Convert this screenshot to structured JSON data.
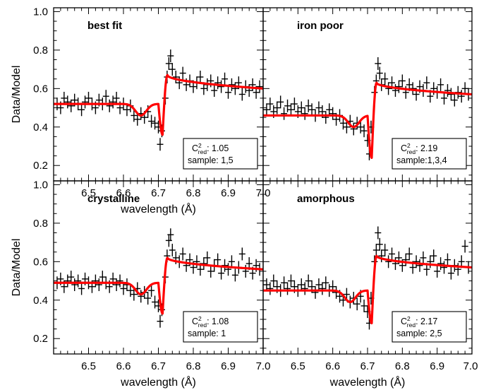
{
  "chart_data": [
    {
      "type": "scatter",
      "title": "best fit",
      "xlabel": "wavelength (Å)",
      "ylabel": "Data/Model",
      "xlim": [
        6.4,
        7.0
      ],
      "ylim": [
        0.12,
        1.02
      ],
      "xticks": [
        "6.5",
        "6.6",
        "6.7",
        "6.8",
        "6.9",
        "7.0"
      ],
      "yticks": [
        "1.0",
        "0.8",
        "0.6",
        "0.4",
        "0.2"
      ],
      "stats": {
        "chi_symbol": "C",
        "chi_sup": "2",
        "chi_sub": "red",
        "chi_value": ": 1.05",
        "sample_text": "sample: 1,5"
      },
      "model": {
        "name": "model",
        "color": "#ff0000",
        "before": 0.52,
        "bump_center": 6.65,
        "bump_depth": 0.06,
        "dip_min": 0.36,
        "peak": 0.67,
        "after": 0.6
      },
      "data": [
        [
          6.41,
          0.52
        ],
        [
          6.42,
          0.5
        ],
        [
          6.43,
          0.55
        ],
        [
          6.44,
          0.53
        ],
        [
          6.45,
          0.51
        ],
        [
          6.46,
          0.54
        ],
        [
          6.47,
          0.52
        ],
        [
          6.48,
          0.49
        ],
        [
          6.49,
          0.53
        ],
        [
          6.5,
          0.55
        ],
        [
          6.51,
          0.52
        ],
        [
          6.52,
          0.5
        ],
        [
          6.53,
          0.54
        ],
        [
          6.54,
          0.52
        ],
        [
          6.55,
          0.56
        ],
        [
          6.56,
          0.51
        ],
        [
          6.57,
          0.53
        ],
        [
          6.58,
          0.55
        ],
        [
          6.59,
          0.5
        ],
        [
          6.6,
          0.52
        ],
        [
          6.61,
          0.49
        ],
        [
          6.62,
          0.51
        ],
        [
          6.63,
          0.46
        ],
        [
          6.64,
          0.44
        ],
        [
          6.65,
          0.47
        ],
        [
          6.66,
          0.45
        ],
        [
          6.67,
          0.48
        ],
        [
          6.68,
          0.43
        ],
        [
          6.69,
          0.42
        ],
        [
          6.7,
          0.4
        ],
        [
          6.705,
          0.31
        ],
        [
          6.71,
          0.38
        ],
        [
          6.72,
          0.55
        ],
        [
          6.725,
          0.66
        ],
        [
          6.73,
          0.73
        ],
        [
          6.735,
          0.77
        ],
        [
          6.74,
          0.7
        ],
        [
          6.75,
          0.66
        ],
        [
          6.76,
          0.63
        ],
        [
          6.77,
          0.68
        ],
        [
          6.78,
          0.62
        ],
        [
          6.79,
          0.64
        ],
        [
          6.8,
          0.61
        ],
        [
          6.81,
          0.63
        ],
        [
          6.82,
          0.66
        ],
        [
          6.83,
          0.6
        ],
        [
          6.84,
          0.62
        ],
        [
          6.85,
          0.64
        ],
        [
          6.86,
          0.59
        ],
        [
          6.87,
          0.63
        ],
        [
          6.88,
          0.61
        ],
        [
          6.89,
          0.65
        ],
        [
          6.9,
          0.58
        ],
        [
          6.91,
          0.62
        ],
        [
          6.92,
          0.6
        ],
        [
          6.93,
          0.63
        ],
        [
          6.94,
          0.57
        ],
        [
          6.95,
          0.61
        ],
        [
          6.96,
          0.59
        ],
        [
          6.97,
          0.62
        ],
        [
          6.98,
          0.58
        ],
        [
          6.99,
          0.61
        ]
      ]
    },
    {
      "type": "scatter",
      "title": "iron poor",
      "xlabel": "",
      "ylabel": "",
      "xlim": [
        6.4,
        7.0
      ],
      "ylim": [
        0.12,
        1.02
      ],
      "stats": {
        "chi_symbol": "C",
        "chi_sup": "2",
        "chi_sub": "red",
        "chi_value": ": 2.19",
        "sample_text": "sample:1,3,4"
      },
      "model": {
        "name": "model",
        "color": "#ff0000",
        "before": 0.46,
        "bump_center": 6.66,
        "bump_depth": 0.06,
        "dip_min": 0.24,
        "peak": 0.63,
        "after": 0.57
      },
      "data": [
        [
          6.41,
          0.49
        ],
        [
          6.42,
          0.52
        ],
        [
          6.43,
          0.48
        ],
        [
          6.44,
          0.5
        ],
        [
          6.45,
          0.53
        ],
        [
          6.46,
          0.47
        ],
        [
          6.47,
          0.51
        ],
        [
          6.48,
          0.49
        ],
        [
          6.49,
          0.52
        ],
        [
          6.5,
          0.48
        ],
        [
          6.51,
          0.5
        ],
        [
          6.52,
          0.47
        ],
        [
          6.53,
          0.51
        ],
        [
          6.54,
          0.49
        ],
        [
          6.55,
          0.46
        ],
        [
          6.56,
          0.5
        ],
        [
          6.57,
          0.48
        ],
        [
          6.58,
          0.45
        ],
        [
          6.59,
          0.49
        ],
        [
          6.6,
          0.47
        ],
        [
          6.61,
          0.44
        ],
        [
          6.62,
          0.46
        ],
        [
          6.63,
          0.42
        ],
        [
          6.64,
          0.4
        ],
        [
          6.65,
          0.43
        ],
        [
          6.66,
          0.39
        ],
        [
          6.67,
          0.42
        ],
        [
          6.68,
          0.4
        ],
        [
          6.69,
          0.38
        ],
        [
          6.7,
          0.33
        ],
        [
          6.705,
          0.26
        ],
        [
          6.71,
          0.4
        ],
        [
          6.72,
          0.58
        ],
        [
          6.725,
          0.64
        ],
        [
          6.73,
          0.73
        ],
        [
          6.735,
          0.68
        ],
        [
          6.74,
          0.62
        ],
        [
          6.75,
          0.65
        ],
        [
          6.76,
          0.6
        ],
        [
          6.77,
          0.63
        ],
        [
          6.78,
          0.59
        ],
        [
          6.79,
          0.61
        ],
        [
          6.8,
          0.64
        ],
        [
          6.81,
          0.58
        ],
        [
          6.82,
          0.62
        ],
        [
          6.83,
          0.6
        ],
        [
          6.84,
          0.57
        ],
        [
          6.85,
          0.61
        ],
        [
          6.86,
          0.59
        ],
        [
          6.87,
          0.63
        ],
        [
          6.88,
          0.56
        ],
        [
          6.89,
          0.6
        ],
        [
          6.9,
          0.58
        ],
        [
          6.91,
          0.62
        ],
        [
          6.92,
          0.55
        ],
        [
          6.93,
          0.59
        ],
        [
          6.94,
          0.57
        ],
        [
          6.95,
          0.54
        ],
        [
          6.96,
          0.58
        ],
        [
          6.97,
          0.56
        ],
        [
          6.98,
          0.6
        ],
        [
          6.99,
          0.57
        ]
      ]
    },
    {
      "type": "scatter",
      "title": "crystalline",
      "xlabel": "wavelength (Å)",
      "ylabel": "Data/Model",
      "xlim": [
        6.4,
        7.0
      ],
      "ylim": [
        0.12,
        1.02
      ],
      "xticks": [
        "6.5",
        "6.6",
        "6.7",
        "6.8",
        "6.9",
        "7.0"
      ],
      "yticks": [
        "1.0",
        "0.8",
        "0.6",
        "0.4",
        "0.2"
      ],
      "stats": {
        "chi_symbol": "C",
        "chi_sup": "2",
        "chi_sub": "red",
        "chi_value": ": 1.08",
        "sample_text": "sample: 1"
      },
      "model": {
        "name": "model",
        "color": "#ff0000",
        "before": 0.49,
        "bump_center": 6.65,
        "bump_depth": 0.06,
        "dip_min": 0.33,
        "peak": 0.62,
        "after": 0.56
      },
      "data": [
        [
          6.41,
          0.49
        ],
        [
          6.42,
          0.51
        ],
        [
          6.43,
          0.47
        ],
        [
          6.44,
          0.5
        ],
        [
          6.45,
          0.52
        ],
        [
          6.46,
          0.48
        ],
        [
          6.47,
          0.5
        ],
        [
          6.48,
          0.46
        ],
        [
          6.49,
          0.51
        ],
        [
          6.5,
          0.49
        ],
        [
          6.51,
          0.47
        ],
        [
          6.52,
          0.5
        ],
        [
          6.53,
          0.48
        ],
        [
          6.54,
          0.52
        ],
        [
          6.55,
          0.49
        ],
        [
          6.56,
          0.47
        ],
        [
          6.57,
          0.51
        ],
        [
          6.58,
          0.48
        ],
        [
          6.59,
          0.5
        ],
        [
          6.6,
          0.46
        ],
        [
          6.61,
          0.48
        ],
        [
          6.62,
          0.45
        ],
        [
          6.63,
          0.43
        ],
        [
          6.64,
          0.46
        ],
        [
          6.65,
          0.42
        ],
        [
          6.66,
          0.44
        ],
        [
          6.67,
          0.41
        ],
        [
          6.68,
          0.45
        ],
        [
          6.69,
          0.39
        ],
        [
          6.7,
          0.37
        ],
        [
          6.705,
          0.29
        ],
        [
          6.71,
          0.35
        ],
        [
          6.72,
          0.52
        ],
        [
          6.725,
          0.63
        ],
        [
          6.73,
          0.71
        ],
        [
          6.735,
          0.74
        ],
        [
          6.74,
          0.66
        ],
        [
          6.75,
          0.62
        ],
        [
          6.76,
          0.6
        ],
        [
          6.77,
          0.64
        ],
        [
          6.78,
          0.58
        ],
        [
          6.79,
          0.61
        ],
        [
          6.8,
          0.57
        ],
        [
          6.81,
          0.6
        ],
        [
          6.82,
          0.56
        ],
        [
          6.83,
          0.59
        ],
        [
          6.84,
          0.62
        ],
        [
          6.85,
          0.55
        ],
        [
          6.86,
          0.58
        ],
        [
          6.87,
          0.61
        ],
        [
          6.88,
          0.54
        ],
        [
          6.89,
          0.58
        ],
        [
          6.9,
          0.56
        ],
        [
          6.91,
          0.6
        ],
        [
          6.92,
          0.53
        ],
        [
          6.93,
          0.57
        ],
        [
          6.94,
          0.64
        ],
        [
          6.95,
          0.55
        ],
        [
          6.96,
          0.59
        ],
        [
          6.97,
          0.54
        ],
        [
          6.98,
          0.58
        ],
        [
          6.99,
          0.56
        ]
      ]
    },
    {
      "type": "scatter",
      "title": "amorphous",
      "xlabel": "wavelength (Å)",
      "ylabel": "",
      "xlim": [
        6.4,
        7.0
      ],
      "ylim": [
        0.12,
        1.02
      ],
      "xticks": [
        "6.5",
        "6.6",
        "6.7",
        "6.8",
        "6.9",
        "7.0"
      ],
      "stats": {
        "chi_symbol": "C",
        "chi_sup": "2",
        "chi_sub": "red",
        "chi_value": ": 2.17",
        "sample_text": "sample: 2,5"
      },
      "model": {
        "name": "model",
        "color": "#ff0000",
        "before": 0.45,
        "bump_center": 6.65,
        "bump_depth": 0.06,
        "dip_min": 0.28,
        "peak": 0.63,
        "after": 0.57
      },
      "data": [
        [
          6.41,
          0.48
        ],
        [
          6.42,
          0.46
        ],
        [
          6.43,
          0.5
        ],
        [
          6.44,
          0.47
        ],
        [
          6.45,
          0.45
        ],
        [
          6.46,
          0.49
        ],
        [
          6.47,
          0.46
        ],
        [
          6.48,
          0.5
        ],
        [
          6.49,
          0.47
        ],
        [
          6.5,
          0.45
        ],
        [
          6.51,
          0.48
        ],
        [
          6.52,
          0.46
        ],
        [
          6.53,
          0.5
        ],
        [
          6.54,
          0.47
        ],
        [
          6.55,
          0.44
        ],
        [
          6.56,
          0.48
        ],
        [
          6.57,
          0.46
        ],
        [
          6.58,
          0.49
        ],
        [
          6.59,
          0.45
        ],
        [
          6.6,
          0.47
        ],
        [
          6.61,
          0.44
        ],
        [
          6.62,
          0.42
        ],
        [
          6.63,
          0.4
        ],
        [
          6.64,
          0.43
        ],
        [
          6.65,
          0.39
        ],
        [
          6.66,
          0.41
        ],
        [
          6.67,
          0.38
        ],
        [
          6.68,
          0.42
        ],
        [
          6.69,
          0.37
        ],
        [
          6.7,
          0.34
        ],
        [
          6.705,
          0.28
        ],
        [
          6.71,
          0.41
        ],
        [
          6.72,
          0.6
        ],
        [
          6.725,
          0.66
        ],
        [
          6.73,
          0.75
        ],
        [
          6.735,
          0.69
        ],
        [
          6.74,
          0.63
        ],
        [
          6.75,
          0.66
        ],
        [
          6.76,
          0.6
        ],
        [
          6.77,
          0.64
        ],
        [
          6.78,
          0.59
        ],
        [
          6.79,
          0.62
        ],
        [
          6.8,
          0.58
        ],
        [
          6.81,
          0.61
        ],
        [
          6.82,
          0.64
        ],
        [
          6.83,
          0.57
        ],
        [
          6.84,
          0.6
        ],
        [
          6.85,
          0.58
        ],
        [
          6.86,
          0.62
        ],
        [
          6.87,
          0.56
        ],
        [
          6.88,
          0.6
        ],
        [
          6.89,
          0.63
        ],
        [
          6.9,
          0.55
        ],
        [
          6.91,
          0.59
        ],
        [
          6.92,
          0.57
        ],
        [
          6.93,
          0.61
        ],
        [
          6.94,
          0.54
        ],
        [
          6.95,
          0.58
        ],
        [
          6.96,
          0.56
        ],
        [
          6.97,
          0.6
        ],
        [
          6.98,
          0.68
        ],
        [
          6.99,
          0.57
        ]
      ]
    }
  ]
}
